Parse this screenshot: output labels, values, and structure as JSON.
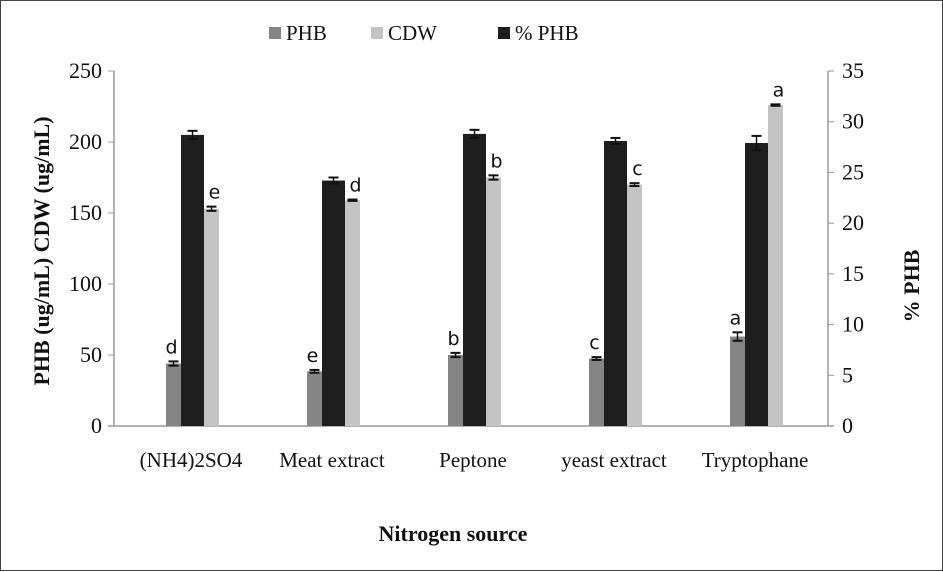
{
  "chart_data": {
    "type": "bar",
    "xlabel": "Nitrogen source",
    "ylabel": "PHB (ug/mL) CDW (ug/mL)",
    "y2label": "% PHB",
    "ylim": [
      0,
      250
    ],
    "y2lim": [
      0,
      35
    ],
    "yticks": [
      "0",
      "50",
      "100",
      "150",
      "200",
      "250"
    ],
    "y2ticks": [
      "0",
      "5",
      "10",
      "15",
      "20",
      "25",
      "30",
      "35"
    ],
    "legend_position": "top",
    "categories": [
      "(NH4)2SO4",
      "Meat extract",
      "Peptone",
      "yeast extract",
      "Tryptophane"
    ],
    "series": [
      {
        "name": "PHB",
        "axis": "left",
        "color": "#858585",
        "values": [
          44,
          38.5,
          50,
          47.5,
          63
        ],
        "errors": [
          1.5,
          1,
          1.5,
          1,
          3
        ],
        "letters": [
          "d",
          "e",
          "b",
          "c",
          "a"
        ]
      },
      {
        "name": "% PHB",
        "axis": "right",
        "color": "#1e1e1e",
        "values": [
          28.7,
          24.2,
          28.8,
          28.1,
          27.9
        ],
        "errors": [
          0.4,
          0.3,
          0.4,
          0.3,
          0.7
        ],
        "letters": []
      },
      {
        "name": "CDW",
        "axis": "left",
        "color": "#c4c4c4",
        "values": [
          153,
          159,
          175,
          170,
          226
        ],
        "errors": [
          1.5,
          0.5,
          1.5,
          1,
          0.5
        ],
        "letters": [
          "e",
          "d",
          "b",
          "c",
          "a"
        ]
      }
    ],
    "legend": [
      "PHB",
      "CDW",
      "% PHB"
    ]
  }
}
